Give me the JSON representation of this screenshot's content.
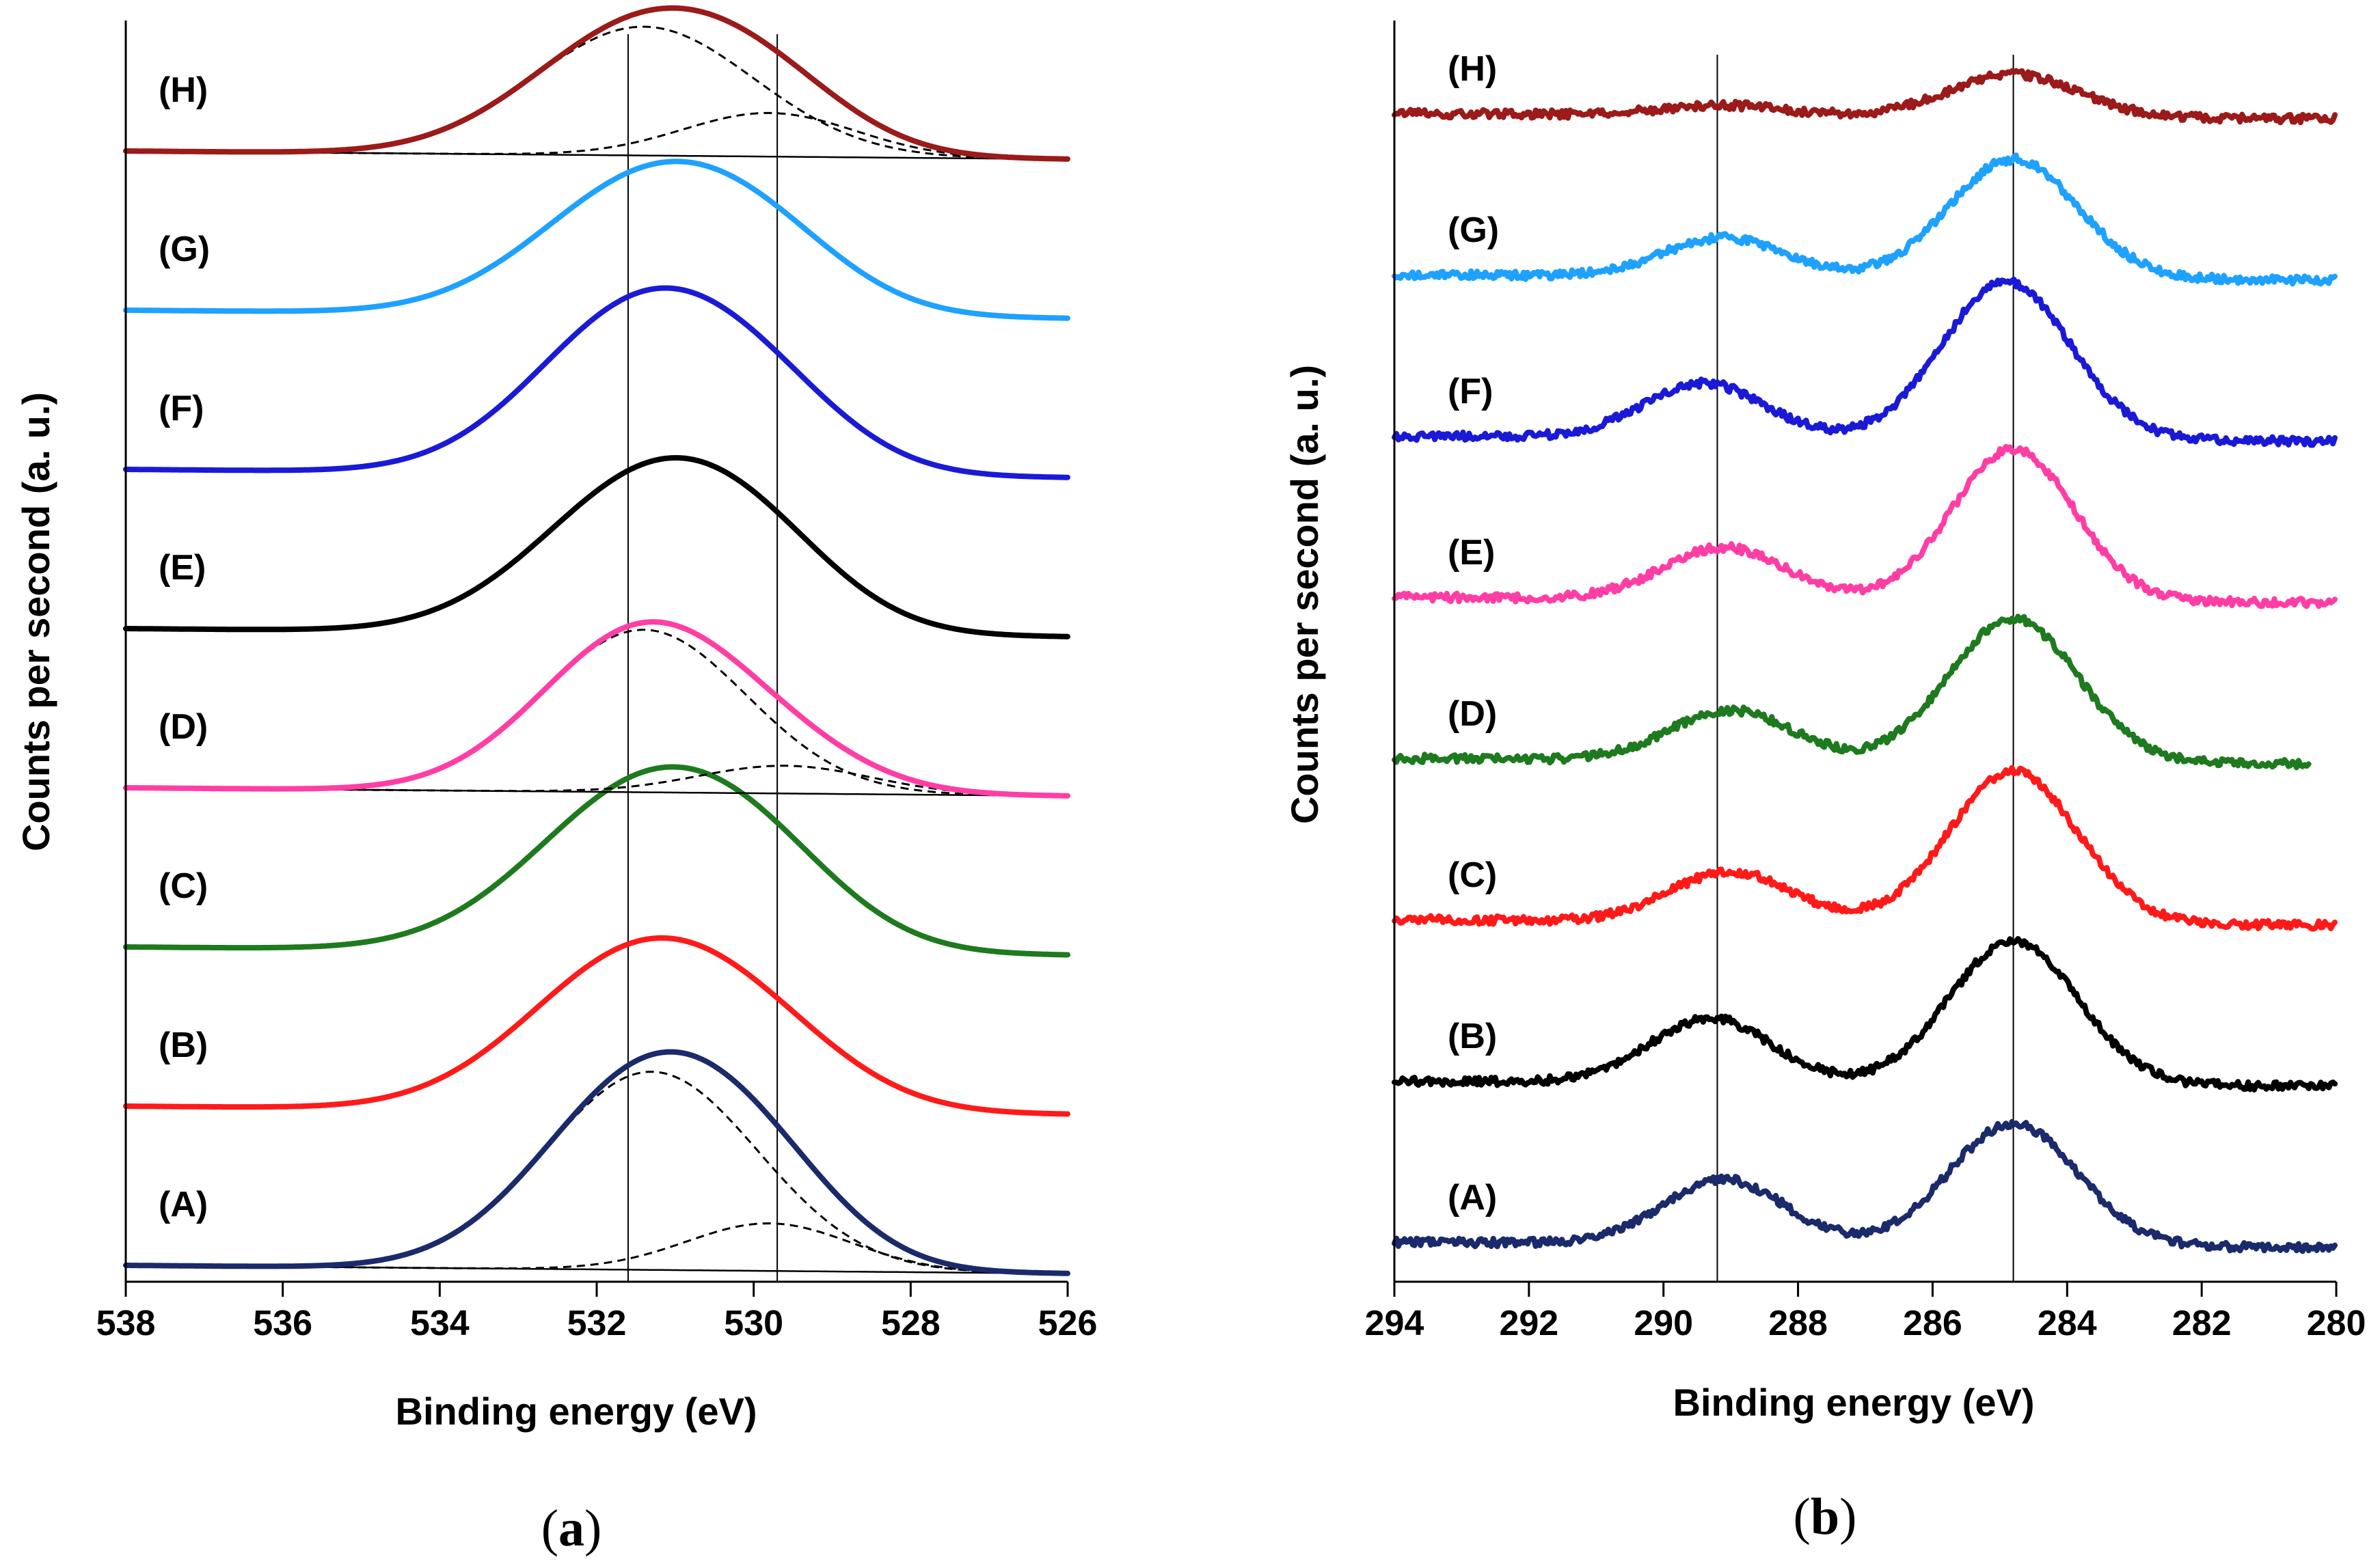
{
  "chart_data": [
    {
      "type": "line",
      "panel": "(a)",
      "panel_letter": "a",
      "xlabel": "Binding energy (eV)",
      "ylabel": "Counts per second (a. u.)",
      "xlim": [
        538,
        526
      ],
      "xticks": [
        "538",
        "536",
        "534",
        "532",
        "530",
        "528",
        "526"
      ],
      "reference_lines_ev": [
        531.6,
        529.7
      ],
      "series": [
        {
          "name": "(A)",
          "color": "#1b2a6b",
          "offset": 0,
          "peaks": [
            [
              531.3,
              1.0,
              1.35
            ],
            [
              529.8,
              0.24,
              1.05
            ]
          ],
          "fitted": true
        },
        {
          "name": "(B)",
          "color": "#ff1a1a",
          "offset": 1,
          "peaks": [
            [
              531.5,
              0.75,
              1.4
            ],
            [
              529.9,
              0.25,
              1.2
            ]
          ],
          "fitted": false
        },
        {
          "name": "(C)",
          "color": "#1e7a1e",
          "offset": 2,
          "peaks": [
            [
              531.3,
              0.84,
              1.45
            ],
            [
              529.8,
              0.2,
              1.1
            ]
          ],
          "fitted": false
        },
        {
          "name": "(D)",
          "color": "#ff3ea5",
          "offset": 3,
          "peaks": [
            [
              531.4,
              0.82,
              1.3
            ],
            [
              529.6,
              0.14,
              1.1
            ]
          ],
          "fitted": true
        },
        {
          "name": "(E)",
          "color": "#000000",
          "offset": 4,
          "peaks": [
            [
              531.3,
              0.77,
              1.4
            ],
            [
              529.9,
              0.22,
              1.1
            ]
          ],
          "fitted": false
        },
        {
          "name": "(F)",
          "color": "#1a1ad6",
          "offset": 5,
          "peaks": [
            [
              531.4,
              0.84,
              1.35
            ],
            [
              529.8,
              0.24,
              1.1
            ]
          ],
          "fitted": false
        },
        {
          "name": "(G)",
          "color": "#1ea1ff",
          "offset": 6,
          "peaks": [
            [
              531.3,
              0.68,
              1.4
            ],
            [
              529.8,
              0.2,
              1.1
            ]
          ],
          "fitted": false
        },
        {
          "name": "(H)",
          "color": "#9b1a1a",
          "offset": 7,
          "peaks": [
            [
              531.4,
              0.65,
              1.4
            ],
            [
              529.8,
              0.22,
              1.1
            ]
          ],
          "fitted": true
        }
      ]
    },
    {
      "type": "line",
      "panel": "(b)",
      "panel_letter": "b",
      "xlabel": "Binding energy (eV)",
      "ylabel": "Counts per second (a. u.)",
      "xlim": [
        294,
        280
      ],
      "xticks": [
        "294",
        "292",
        "290",
        "288",
        "286",
        "284",
        "282",
        "280"
      ],
      "reference_lines_ev": [
        289.2,
        284.8
      ],
      "series": [
        {
          "name": "(A)",
          "color": "#1b2a6b",
          "offset": 0,
          "x_end": 280,
          "peaks": [
            [
              289.1,
              0.45,
              0.9
            ],
            [
              284.8,
              0.85,
              0.95
            ]
          ]
        },
        {
          "name": "(B)",
          "color": "#000000",
          "offset": 1,
          "x_end": 280,
          "peaks": [
            [
              289.3,
              0.45,
              0.9
            ],
            [
              284.8,
              1.0,
              0.95
            ]
          ]
        },
        {
          "name": "(C)",
          "color": "#ff1a1a",
          "offset": 2,
          "x_end": 280,
          "peaks": [
            [
              289.0,
              0.35,
              0.9
            ],
            [
              284.8,
              1.06,
              0.95
            ]
          ]
        },
        {
          "name": "(D)",
          "color": "#1e7a1e",
          "offset": 3,
          "x_end": 280.4,
          "peaks": [
            [
              289.0,
              0.35,
              0.9
            ],
            [
              284.8,
              1.0,
              0.95
            ]
          ]
        },
        {
          "name": "(E)",
          "color": "#ff3ea5",
          "offset": 4,
          "x_end": 280,
          "peaks": [
            [
              289.1,
              0.36,
              0.9
            ],
            [
              284.8,
              1.06,
              0.9
            ]
          ]
        },
        {
          "name": "(F)",
          "color": "#1a1ad6",
          "offset": 5,
          "x_end": 280,
          "peaks": [
            [
              289.4,
              0.38,
              0.9
            ],
            [
              284.9,
              1.1,
              0.95
            ]
          ]
        },
        {
          "name": "(G)",
          "color": "#1ea1ff",
          "offset": 6,
          "x_end": 280,
          "peaks": [
            [
              289.1,
              0.27,
              0.9
            ],
            [
              284.8,
              0.83,
              0.95
            ]
          ]
        },
        {
          "name": "(H)",
          "color": "#9b1a1a",
          "offset": 7,
          "x_end": 280,
          "peaks": [
            [
              289.1,
              0.07,
              0.9
            ],
            [
              284.8,
              0.3,
              0.95
            ]
          ]
        }
      ]
    }
  ]
}
